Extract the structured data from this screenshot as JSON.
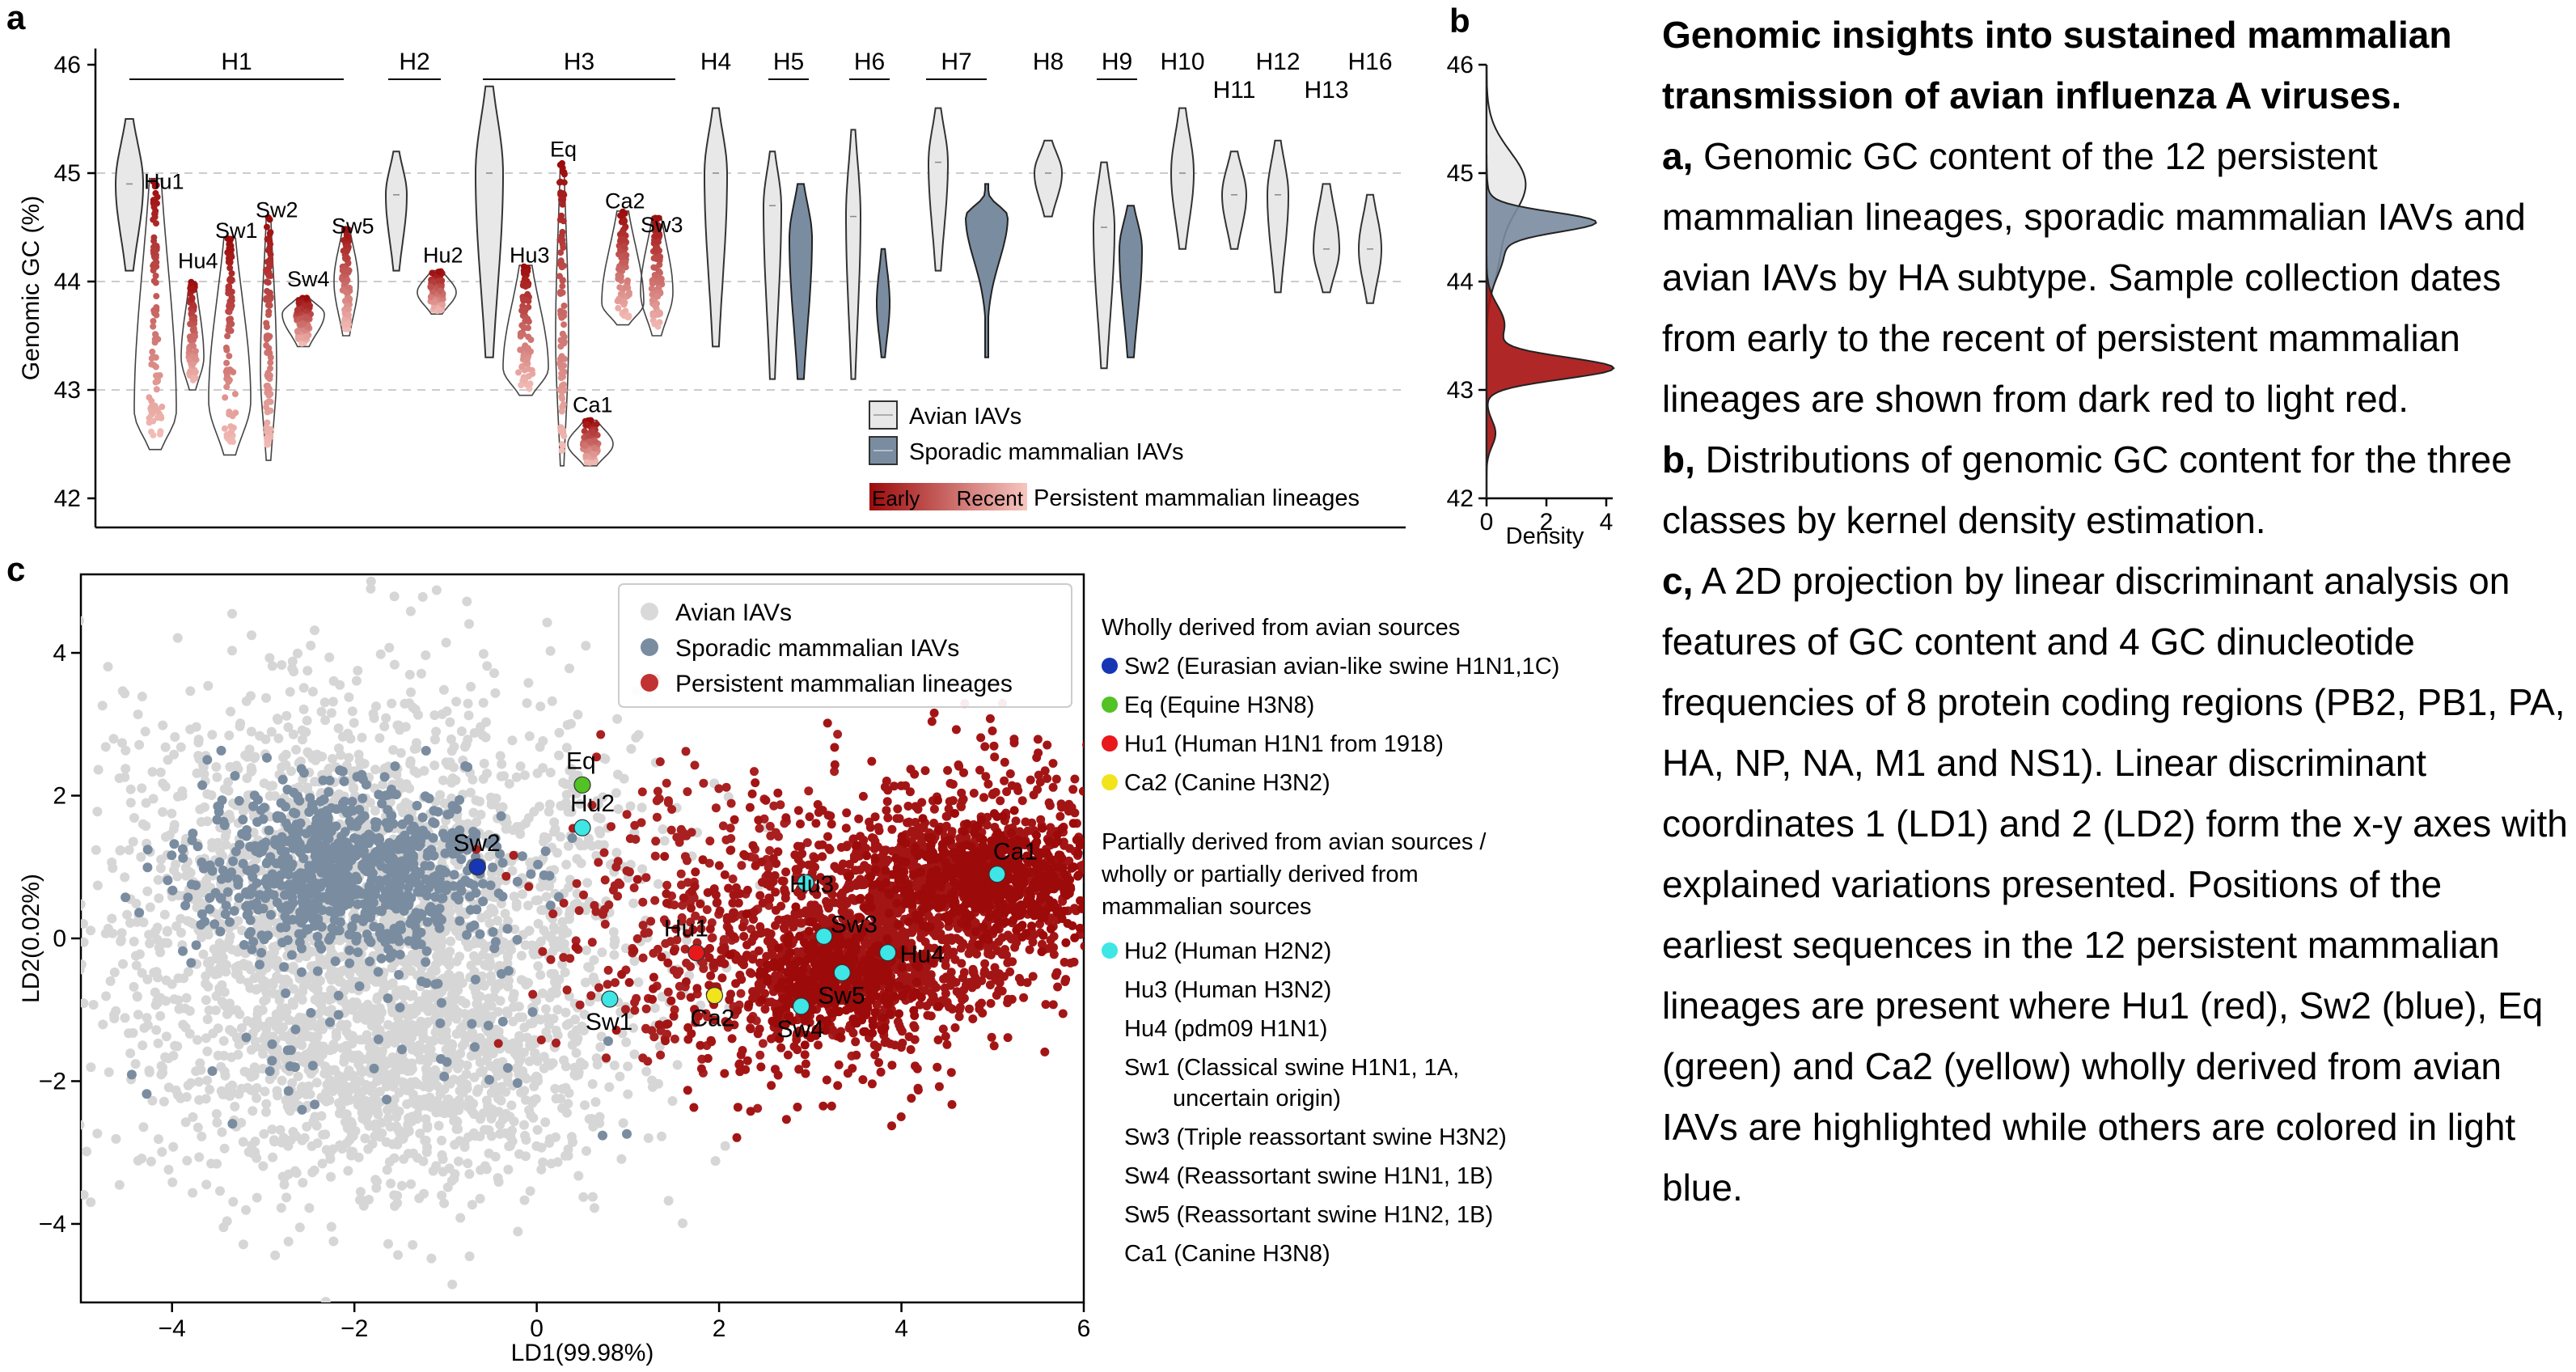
{
  "caption": {
    "title": "Genomic insights into sustained mammalian transmission of avian influenza A viruses.",
    "paragraphs": [
      {
        "label": "a,",
        "text": " Genomic GC content of the 12 persistent mammalian lineages, sporadic mammalian IAVs and avian IAVs by HA subtype. Sample collection dates from early to the recent of persistent mammalian lineages are shown from dark red to light red."
      },
      {
        "label": "b,",
        "text": " Distributions of genomic GC content for the three classes by kernel density estimation."
      },
      {
        "label": "c,",
        "text": " A 2D projection by linear discriminant analysis on features of GC content and 4 GC dinucleotide frequencies of 8 protein coding regions (PB2, PB1, PA, HA, NP, NA, M1 and NS1). Linear discriminant coordinates 1 (LD1) and 2 (LD2) form the x-y axes with explained variations presented. Positions of the earliest sequences in the 12 persistent mammalian lineages are present where Hu1 (red), Sw2 (blue), Eq (green) and Ca2 (yellow) wholly derived from avian IAVs are highlighted while others are colored in light blue."
      }
    ]
  },
  "colors": {
    "avian": "#d9d9d9",
    "avian_violin": "#e8e8e8",
    "sporadic": "#7a8ca0",
    "persistent_dark": "#9c0a0a",
    "persistent_light": "#f4b6b0",
    "persistent_scatter": "#a31515",
    "sw2_blue": "#1736b3",
    "eq_green": "#52c224",
    "hu1_red": "#e8181b",
    "ca2_yellow": "#f2e41b",
    "other_cyan": "#3ee6e6"
  },
  "panel_labels": {
    "a": "a",
    "b": "b",
    "c": "c"
  },
  "panel_a": {
    "ylabel": "Genomic GC (%)",
    "yticks": [
      "42",
      "43",
      "44",
      "45",
      "46"
    ],
    "groups": [
      "H1",
      "H2",
      "H3",
      "H4",
      "H5",
      "H6",
      "H7",
      "H8",
      "H9",
      "H10",
      "H11",
      "H12",
      "H13",
      "H16"
    ],
    "lineage_labels": [
      "Hu1",
      "Hu4",
      "Sw1",
      "Sw2",
      "Sw4",
      "Sw5",
      "Hu2",
      "Hu3",
      "Eq",
      "Ca1",
      "Ca2",
      "Sw3"
    ],
    "legend": {
      "avian": "Avian IAVs",
      "sporadic": "Sporadic mammalian IAVs",
      "early": "Early",
      "recent": "Recent",
      "persistent": "Persistent mammalian lineages"
    }
  },
  "chart_data": [
    {
      "type": "violin",
      "panel": "a",
      "ylabel": "Genomic GC (%)",
      "ylim": [
        41.8,
        46.2
      ],
      "categories": [
        "H1",
        "H2",
        "H3",
        "H4",
        "H5",
        "H6",
        "H7",
        "H8",
        "H9",
        "H10",
        "H11",
        "H12",
        "H13",
        "H16"
      ],
      "series": [
        {
          "name": "Avian IAVs",
          "medians": {
            "H1": 44.9,
            "H2": 44.8,
            "H3": 45.0,
            "H4": 45.0,
            "H5": 44.7,
            "H6": 44.6,
            "H7": 45.1,
            "H8": 45.0,
            "H9": 44.5,
            "H10": 45.0,
            "H11": 44.8,
            "H12": 44.8,
            "H13": 44.3,
            "H16": 44.3
          }
        },
        {
          "name": "Sporadic mammalian IAVs",
          "medians": {
            "H5": 44.4,
            "H6": 43.8,
            "H7": 44.6,
            "H9": 44.3
          }
        },
        {
          "name": "Persistent mammalian lineages",
          "medians": {
            "Hu1": 42.8,
            "Hu4": 43.3,
            "Sw1": 42.9,
            "Sw2": 43.2,
            "Sw4": 43.7,
            "Sw5": 44.0,
            "Hu2": 43.9,
            "Hu3": 43.2,
            "Eq": 43.5,
            "Ca1": 42.5,
            "Ca2": 43.8,
            "Sw3": 43.9
          }
        }
      ]
    },
    {
      "type": "area",
      "panel": "b",
      "xlabel": "Density",
      "xticks": [
        "0",
        "2",
        "4"
      ],
      "yticks": [
        "42",
        "43",
        "44",
        "45",
        "46"
      ],
      "ylim": [
        42,
        46
      ],
      "series": [
        {
          "name": "Avian IAVs",
          "peak_gc": 44.9,
          "peak_density": 1.3
        },
        {
          "name": "Sporadic mammalian IAVs",
          "peak_gc": 44.55,
          "peak_density": 3.3
        },
        {
          "name": "Persistent mammalian lineages",
          "peak_gc": 43.2,
          "peak_density": 4.2
        }
      ]
    },
    {
      "type": "scatter",
      "panel": "c",
      "xlabel": "LD1(99.98%)",
      "ylabel": "LD2(0.02%)",
      "xlim": [
        -5,
        6
      ],
      "ylim": [
        -5.1,
        5.1
      ],
      "xticks": [
        "−4",
        "−2",
        "0",
        "2",
        "4",
        "6"
      ],
      "yticks": [
        "−4",
        "−2",
        "0",
        "2",
        "4"
      ],
      "legend": [
        "Avian IAVs",
        "Sporadic mammalian IAVs",
        "Persistent mammalian lineages"
      ],
      "clusters": [
        {
          "name": "Avian IAVs",
          "center": [
            -1.9,
            0.2
          ],
          "spread": [
            1.5,
            1.6
          ]
        },
        {
          "name": "Sporadic mammalian IAVs",
          "center": [
            -2.1,
            0.9
          ],
          "spread": [
            0.8,
            0.6
          ]
        },
        {
          "name": "Persistent mammalian lineages",
          "center": [
            4.0,
            0.3
          ],
          "spread": [
            1.1,
            0.9
          ]
        }
      ],
      "highlights": [
        {
          "label": "Sw2",
          "x": -0.65,
          "y": 1.0,
          "color": "blue"
        },
        {
          "label": "Eq",
          "x": 0.5,
          "y": 2.15,
          "color": "green"
        },
        {
          "label": "Hu2",
          "x": 0.5,
          "y": 1.55,
          "color": "cyan"
        },
        {
          "label": "Hu1",
          "x": 1.75,
          "y": -0.2,
          "color": "red"
        },
        {
          "label": "Sw1",
          "x": 0.8,
          "y": -0.85,
          "color": "cyan"
        },
        {
          "label": "Ca2",
          "x": 1.95,
          "y": -0.8,
          "color": "yellow"
        },
        {
          "label": "Hu3",
          "x": 2.95,
          "y": 0.78,
          "color": "cyan"
        },
        {
          "label": "Sw3",
          "x": 3.15,
          "y": 0.03,
          "color": "cyan"
        },
        {
          "label": "Hu4",
          "x": 3.85,
          "y": -0.2,
          "color": "cyan"
        },
        {
          "label": "Sw5",
          "x": 3.35,
          "y": -0.48,
          "color": "cyan"
        },
        {
          "label": "Sw4",
          "x": 2.9,
          "y": -0.95,
          "color": "cyan"
        },
        {
          "label": "Ca1",
          "x": 5.05,
          "y": 0.9,
          "color": "cyan"
        }
      ]
    }
  ],
  "legend_c": {
    "wholly_header": "Wholly derived from avian sources",
    "wholly": [
      {
        "text": "Sw2 (Eurasian avian-like swine H1N1,1C)",
        "color": "blue"
      },
      {
        "text": "Eq (Equine H3N8)",
        "color": "green"
      },
      {
        "text": "Hu1 (Human H1N1 from 1918)",
        "color": "red"
      },
      {
        "text": "Ca2 (Canine H3N2)",
        "color": "yellow"
      }
    ],
    "partial_header": [
      "Partially derived from avian sources /",
      "wholly or partially derived from",
      "mammalian sources"
    ],
    "partial": [
      {
        "lines": [
          "Hu2 (Human H2N2)"
        ],
        "color": "cyan"
      },
      {
        "lines": [
          "Hu3 (Human H3N2)"
        ]
      },
      {
        "lines": [
          "Hu4 (pdm09 H1N1)"
        ]
      },
      {
        "lines": [
          "Sw1 (Classical swine H1N1, 1A,",
          "uncertain origin)"
        ]
      },
      {
        "lines": [
          "Sw3 (Triple reassortant swine H3N2)"
        ]
      },
      {
        "lines": [
          "Sw4 (Reassortant swine H1N1, 1B)"
        ]
      },
      {
        "lines": [
          "Sw5 (Reassortant swine H1N2, 1B)"
        ]
      },
      {
        "lines": [
          "Ca1 (Canine H3N8)"
        ]
      }
    ]
  }
}
